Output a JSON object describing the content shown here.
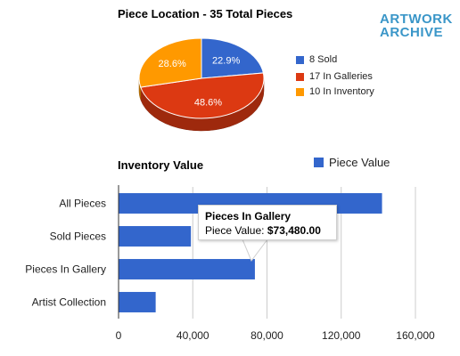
{
  "logo": {
    "line1": "ARTWORK",
    "line2": "ARCHIVE"
  },
  "tooltip": {
    "title": "Pieces In Gallery",
    "label": "Piece Value:",
    "value": "$73,480.00"
  },
  "chart_data": [
    {
      "type": "pie",
      "title": "Piece Location - 35 Total Pieces",
      "slices": [
        {
          "label": "8 Sold",
          "value": 8,
          "percent_label": "22.9%",
          "color": "#3366cc"
        },
        {
          "label": "17 In Galleries",
          "value": 17,
          "percent_label": "48.6%",
          "color": "#dc3912"
        },
        {
          "label": "10 In Inventory",
          "value": 10,
          "percent_label": "28.6%",
          "color": "#ff9900"
        }
      ],
      "legend_position": "right",
      "style": "3d"
    },
    {
      "type": "bar",
      "orientation": "horizontal",
      "title": "Inventory Value",
      "categories": [
        "All Pieces",
        "Sold Pieces",
        "Pieces In Gallery",
        "Artist Collection"
      ],
      "series": [
        {
          "name": "Piece Value",
          "values": [
            142000,
            39000,
            73480,
            20000
          ],
          "color": "#3366cc"
        }
      ],
      "xlim": [
        0,
        160000
      ],
      "xticks": [
        0,
        40000,
        80000,
        120000,
        160000
      ],
      "xtick_labels": [
        "0",
        "40,000",
        "80,000",
        "120,000",
        "160,000"
      ],
      "grid": true,
      "legend_position": "top-right"
    }
  ]
}
